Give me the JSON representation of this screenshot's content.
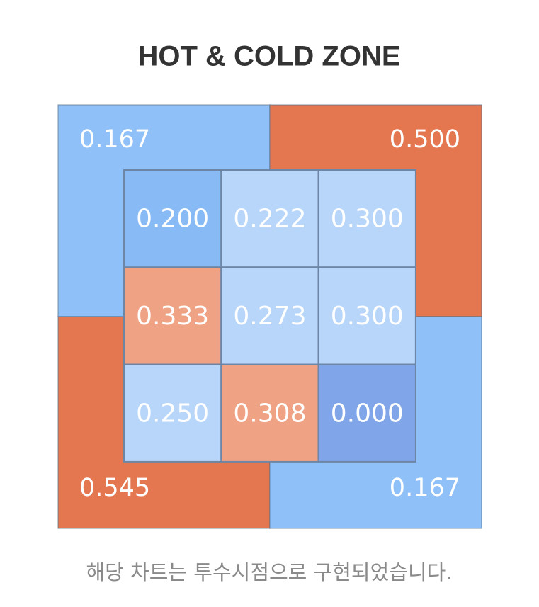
{
  "title": "HOT & COLD ZONE",
  "outer": [
    {
      "label": "0.167",
      "color": "#90c0f8"
    },
    {
      "label": "0.500",
      "color": "#e47650"
    },
    {
      "label": "0.545",
      "color": "#e47650"
    },
    {
      "label": "0.167",
      "color": "#90c0f8"
    }
  ],
  "inner": [
    [
      {
        "label": "0.200",
        "color": "#88bbf5"
      },
      {
        "label": "0.222",
        "color": "#b8d6fa"
      },
      {
        "label": "0.300",
        "color": "#b8d6fa"
      }
    ],
    [
      {
        "label": "0.333",
        "color": "#f0a285"
      },
      {
        "label": "0.273",
        "color": "#b8d6fa"
      },
      {
        "label": "0.300",
        "color": "#b8d6fa"
      }
    ],
    [
      {
        "label": "0.250",
        "color": "#b8d6fa"
      },
      {
        "label": "0.308",
        "color": "#f0a285"
      },
      {
        "label": "0.000",
        "color": "#80a5e8"
      }
    ]
  ],
  "caption": "해당 차트는 투수시점으로 구현되었습니다."
}
